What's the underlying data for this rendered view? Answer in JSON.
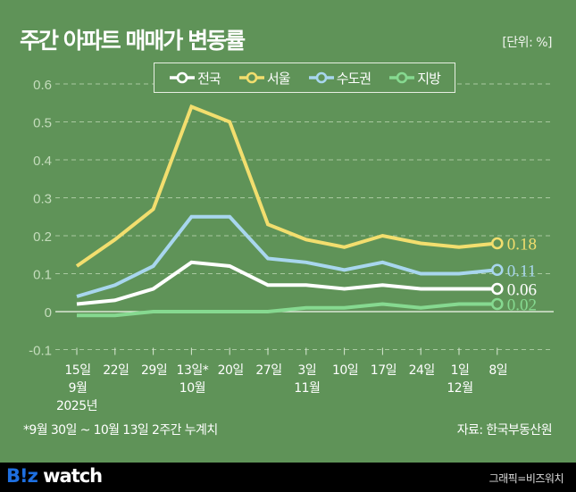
{
  "header": {
    "title": "주간 아파트 매매가 변동률",
    "unit": "[단위: %]"
  },
  "footnote": "*9월 30일 ~ 10월 13일 2주간 누계치",
  "source": "자료: 한국부동산원",
  "footer": {
    "logo_b": "B!z",
    "logo_w": " watch",
    "credit": "그래픽=비즈워치"
  },
  "chart_data": {
    "type": "line",
    "title": "주간 아파트 매매가 변동률",
    "ylabel": "[단위: %]",
    "ylim": [
      -0.1,
      0.6
    ],
    "yticks": [
      "0.6",
      "0.5",
      "0.4",
      "0.3",
      "0.2",
      "0.1",
      "0",
      "-0.1"
    ],
    "ytick_values": [
      0.6,
      0.5,
      0.4,
      0.3,
      0.2,
      0.1,
      0,
      -0.1
    ],
    "grid": true,
    "legend_position": "top-center",
    "categories": [
      "15일",
      "22일",
      "29일",
      "13일*",
      "20일",
      "27일",
      "3일",
      "10일",
      "17일",
      "24일",
      "1일",
      "8일"
    ],
    "month_labels": [
      {
        "index": 0,
        "label": "9월"
      },
      {
        "index": 3,
        "label": "10월"
      },
      {
        "index": 6,
        "label": "11월"
      },
      {
        "index": 10,
        "label": "12월"
      }
    ],
    "year_label": {
      "index": 0,
      "label": "2025년"
    },
    "series": [
      {
        "name": "서울",
        "color": "#f2de6e",
        "values": [
          0.12,
          0.19,
          0.27,
          0.54,
          0.5,
          0.23,
          0.19,
          0.17,
          0.2,
          0.18,
          0.17,
          0.18
        ],
        "end_label": "0.18"
      },
      {
        "name": "수도권",
        "color": "#a8d6ee",
        "values": [
          0.04,
          0.07,
          0.12,
          0.25,
          0.25,
          0.14,
          0.13,
          0.11,
          0.13,
          0.1,
          0.1,
          0.11
        ],
        "end_label": "0.11"
      },
      {
        "name": "전국",
        "color": "#ffffff",
        "values": [
          0.02,
          0.03,
          0.06,
          0.13,
          0.12,
          0.07,
          0.07,
          0.06,
          0.07,
          0.06,
          0.06,
          0.06
        ],
        "end_label": "0.06"
      },
      {
        "name": "지방",
        "color": "#86d990",
        "values": [
          -0.01,
          -0.01,
          0.0,
          0.0,
          0.0,
          0.0,
          0.01,
          0.01,
          0.02,
          0.01,
          0.02,
          0.02
        ],
        "end_label": "0.02"
      }
    ],
    "legend_order": [
      "전국",
      "서울",
      "수도권",
      "지방"
    ]
  }
}
